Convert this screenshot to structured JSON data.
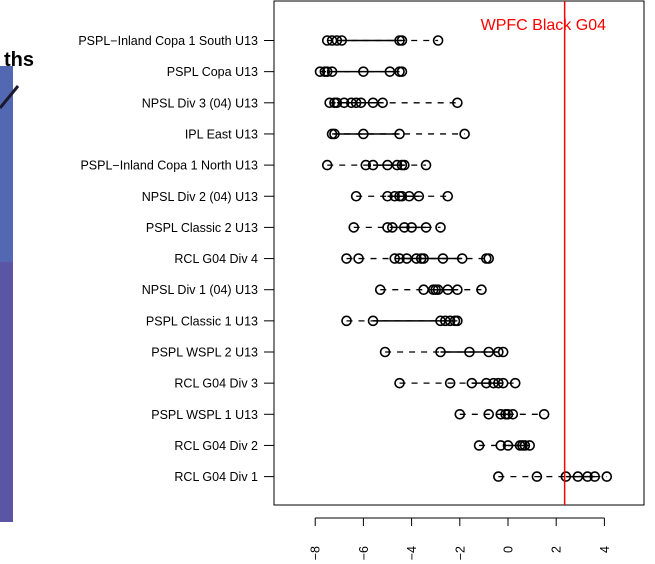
{
  "background_panel": {
    "title_fragment": "ths",
    "colors": {
      "purple": "#5b55a5",
      "blue": "#4a78c0",
      "dark": "#1a1a2e"
    }
  },
  "chart_data": {
    "type": "scatter",
    "orientation": "horizontal",
    "title": "",
    "xlabel": "",
    "ylabel": "",
    "xlim": [
      -8.6,
      5
    ],
    "x_ticks": [
      -8,
      -6,
      -4,
      -2,
      0,
      2,
      4
    ],
    "tick_label_rotation": "vertical",
    "grid": false,
    "reference_line": {
      "label": "WPFC Black G04",
      "x": 2.35,
      "color": "#ff0000"
    },
    "categories": [
      "PSPL−Inland Copa 1 South U13",
      "PSPL Copa U13",
      "NPSL Div 3 (04) U13",
      "IPL East U13",
      "PSPL−Inland Copa 1 North U13",
      "NPSL Div 2 (04) U13",
      "PSPL Classic 2 U13",
      "RCL G04 Div 4",
      "NPSL Div 1 (04) U13",
      "PSPL Classic 1 U13",
      "PSPL WSPL 2 U13",
      "RCL G04 Div 3",
      "PSPL WSPL 1 U13",
      "RCL G04 Div 2",
      "RCL G04 Div 1"
    ],
    "series": [
      {
        "values": [
          [
            -7.5,
            -7.3,
            -7.1,
            -6.9,
            -4.5,
            -4.4,
            -2.9
          ]
        ],
        "box": [
          -7.1,
          -4.4
        ]
      },
      {
        "values": [
          [
            -7.8,
            -7.6,
            -7.5,
            -7.3,
            -6.0,
            -4.9,
            -4.5,
            -4.4
          ]
        ],
        "box": [
          -7.5,
          -4.5
        ]
      },
      {
        "values": [
          [
            -7.4,
            -7.2,
            -7.1,
            -6.8,
            -6.5,
            -6.3,
            -6.1,
            -5.6,
            -5.2,
            -2.1
          ]
        ],
        "box": [
          -7.1,
          -5.2
        ]
      },
      {
        "values": [
          [
            -7.3,
            -7.2,
            -6.0,
            -4.5,
            -1.8
          ]
        ],
        "box": [
          -7.2,
          -4.5
        ]
      },
      {
        "values": [
          [
            -7.5,
            -5.9,
            -5.6,
            -5.0,
            -4.6,
            -4.4,
            -4.3,
            -3.4
          ]
        ],
        "box": [
          -5.6,
          -4.3
        ]
      },
      {
        "values": [
          [
            -6.3,
            -5.0,
            -4.7,
            -4.5,
            -4.4,
            -4.1,
            -3.7,
            -2.5
          ]
        ],
        "box": [
          -5.0,
          -3.7
        ]
      },
      {
        "values": [
          [
            -6.4,
            -5.0,
            -4.8,
            -4.3,
            -4.0,
            -3.4,
            -2.8
          ]
        ],
        "box": [
          -4.8,
          -3.4
        ]
      },
      {
        "values": [
          [
            -6.7,
            -6.2,
            -4.7,
            -4.5,
            -4.2,
            -3.8,
            -3.6,
            -3.5,
            -2.7,
            -1.9,
            -0.9,
            -0.8
          ]
        ],
        "box": [
          -4.5,
          -1.9
        ]
      },
      {
        "values": [
          [
            -5.3,
            -3.5,
            -3.1,
            -3.0,
            -2.9,
            -2.5,
            -2.1,
            -1.1
          ]
        ],
        "box": [
          -3.1,
          -2.1
        ]
      },
      {
        "values": [
          [
            -6.7,
            -5.6,
            -2.8,
            -2.6,
            -2.4,
            -2.2,
            -2.1
          ]
        ],
        "box": [
          -5.6,
          -2.2
        ]
      },
      {
        "values": [
          [
            -5.1,
            -2.8,
            -1.6,
            -0.8,
            -0.4,
            -0.2
          ]
        ],
        "box": [
          -2.8,
          -0.4
        ]
      },
      {
        "values": [
          [
            -4.5,
            -2.4,
            -1.5,
            -0.9,
            -0.6,
            -0.4,
            -0.2,
            0.3
          ]
        ],
        "box": [
          -1.5,
          -0.2
        ]
      },
      {
        "values": [
          [
            -2.0,
            -0.8,
            -0.3,
            -0.1,
            0.0,
            0.2,
            1.5
          ]
        ],
        "box": [
          -0.3,
          0.2
        ]
      },
      {
        "values": [
          [
            -1.2,
            -0.3,
            0.0,
            0.5,
            0.6,
            0.7,
            0.9
          ]
        ],
        "box": [
          0.0,
          0.7
        ]
      },
      {
        "values": [
          [
            -0.4,
            1.2,
            2.4,
            2.9,
            3.3,
            3.6,
            4.1
          ]
        ],
        "box": [
          2.4,
          3.6
        ]
      }
    ]
  }
}
